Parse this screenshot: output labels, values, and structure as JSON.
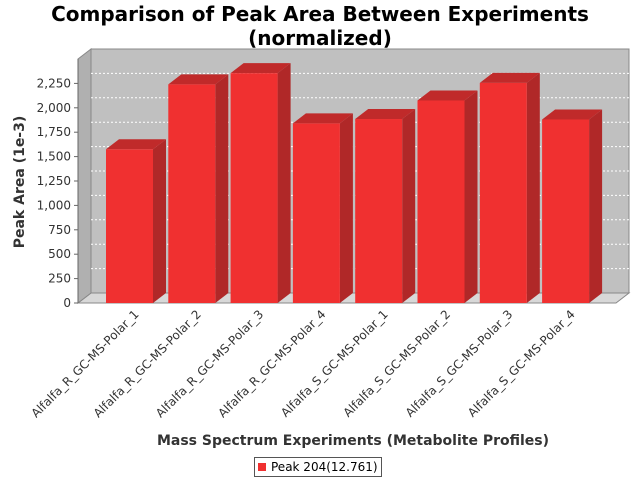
{
  "chart_data": {
    "type": "bar",
    "title": "Comparison of Peak Area Between Experiments\n(normalized)",
    "xlabel": "Mass Spectrum Experiments (Metabolite Profiles)",
    "ylabel": "Peak Area (1e-3)",
    "ylim": [
      0,
      2500
    ],
    "yticks": [
      0,
      250,
      500,
      750,
      1000,
      1250,
      1500,
      1750,
      2000,
      2250
    ],
    "ytick_labels": [
      "0",
      "250",
      "500",
      "750",
      "1,000",
      "1,250",
      "1,500",
      "1,750",
      "2,000",
      "2,250"
    ],
    "categories": [
      "Alfalfa_R_GC-MS-Polar_1",
      "Alfalfa_R_GC-MS-Polar_2",
      "Alfalfa_R_GC-MS-Polar_3",
      "Alfalfa_R_GC-MS-Polar_4",
      "Alfalfa_S_GC-MS-Polar_1",
      "Alfalfa_S_GC-MS-Polar_2",
      "Alfalfa_S_GC-MS-Polar_3",
      "Alfalfa_S_GC-MS-Polar_4"
    ],
    "series": [
      {
        "name": "Peak 204(12.761)",
        "color": "#f03030",
        "values": [
          1575,
          2240,
          2355,
          1840,
          1885,
          2075,
          2255,
          1880
        ]
      }
    ],
    "grid": true,
    "legend_position": "bottom",
    "style": "3d-bar"
  }
}
